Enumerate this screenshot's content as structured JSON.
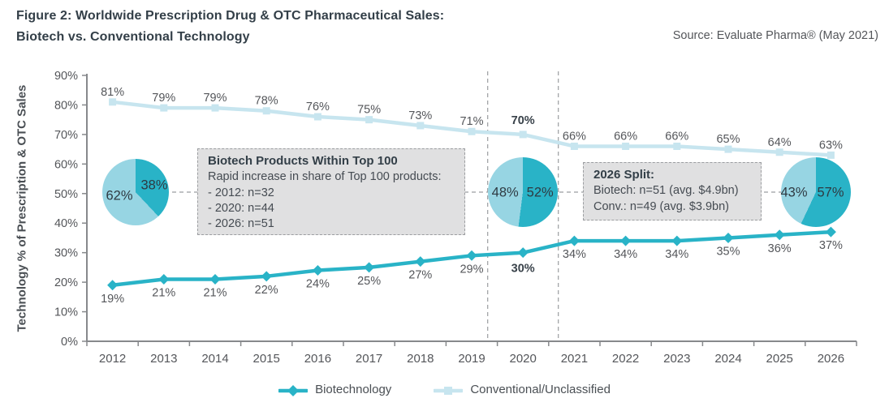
{
  "header": {
    "title_line1": "Figure 2: Worldwide Prescription Drug & OTC Pharmaceutical Sales:",
    "title_line2": "Biotech vs. Conventional Technology",
    "source": "Source: Evaluate Pharma® (May 2021)"
  },
  "chart_data": {
    "type": "line",
    "x": [
      2012,
      2013,
      2014,
      2015,
      2016,
      2017,
      2018,
      2019,
      2020,
      2021,
      2022,
      2023,
      2024,
      2025,
      2026
    ],
    "series": [
      {
        "name": "Biotechnology",
        "color": "#29b3c7",
        "marker": "diamond",
        "label_position": "below",
        "values": [
          19,
          21,
          21,
          22,
          24,
          25,
          27,
          29,
          30,
          34,
          34,
          34,
          35,
          36,
          37
        ]
      },
      {
        "name": "Conventional/Unclassified",
        "color": "#c7e5ef",
        "marker": "square",
        "label_position": "above",
        "values": [
          81,
          79,
          79,
          78,
          76,
          75,
          73,
          71,
          70,
          66,
          66,
          66,
          65,
          64,
          63
        ]
      }
    ],
    "ylabel": "Technology % of Prescription & OTC Sales",
    "ylim": [
      0,
      90
    ],
    "ytick_step": 10,
    "ytick_suffix": "%",
    "grid": false,
    "legend_position": "bottom",
    "bold_x": 2020,
    "dashed_vlines_bracket_x": 2020
  },
  "pies": [
    {
      "name": "2012-split",
      "light_pct": 62,
      "dark_pct": 38
    },
    {
      "name": "2020-split",
      "light_pct": 48,
      "dark_pct": 52
    },
    {
      "name": "2026-split",
      "light_pct": 43,
      "dark_pct": 57
    }
  ],
  "annotations": {
    "box1": {
      "title": "Biotech Products Within Top 100",
      "lines": [
        "Rapid increase in share of Top 100 products:",
        "- 2012: n=32",
        "- 2020: n=44",
        "- 2026: n=51"
      ]
    },
    "box2": {
      "title": "2026 Split:",
      "lines": [
        "Biotech: n=51 (avg. $4.9bn)",
        "Conv.: n=49 (avg. $3.9bn)"
      ]
    }
  },
  "legend": {
    "items": [
      {
        "label": "Biotechnology"
      },
      {
        "label": "Conventional/Unclassified"
      }
    ]
  },
  "colors": {
    "biotech_teal": "#29b3c7",
    "conventional_light_blue": "#c7e5ef",
    "pie_light_blue": "#97d5e3",
    "axis_gray": "#87898c",
    "title_text": "#333f48",
    "label_gray": "#54565a",
    "bold_label": "#39424a",
    "box_bg": "#e0e0e1",
    "dash_gray": "#9b9da0"
  }
}
